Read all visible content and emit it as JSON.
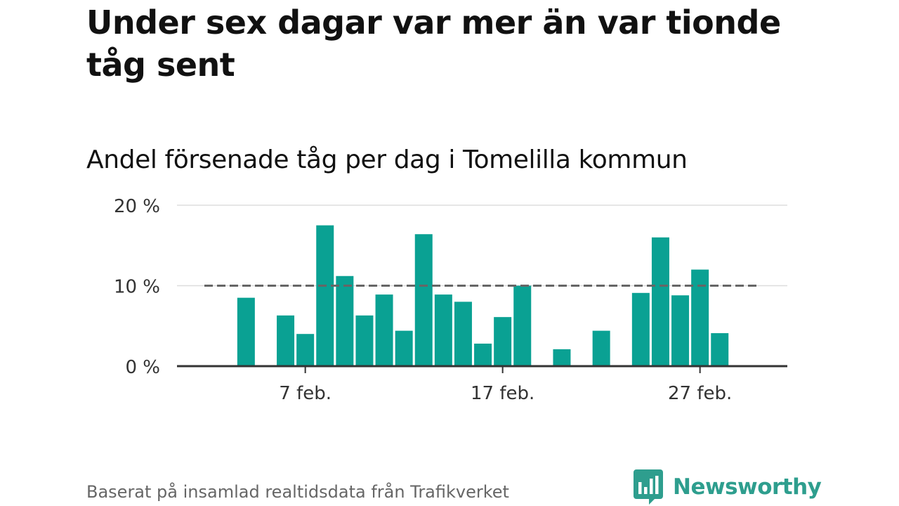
{
  "title": "Under sex dagar var mer än var tionde tåg sent",
  "subtitle": "Andel försenade tåg per dag i Tomelilla kommun",
  "source": "Baserat på insamlad realtidsdata från Trafikverket",
  "brand": {
    "name": "Newsworthy",
    "logo_icon": "newsworthy-logo-icon",
    "color": "#2e9e8e"
  },
  "colors": {
    "bar": "#0aa193",
    "reference_line": "#666666",
    "grid": "#dddddd",
    "axis": "#333333"
  },
  "chart_data": {
    "type": "bar",
    "title": "Andel försenade tåg per dag i Tomelilla kommun",
    "xlabel": "",
    "ylabel": "",
    "y_unit": "%",
    "ylim": [
      0,
      20
    ],
    "yticks": [
      0,
      10,
      20
    ],
    "ytick_labels": [
      "0 %",
      "10 %",
      "20 %"
    ],
    "grid": true,
    "xticks": [
      {
        "day": 7,
        "label": "7 feb."
      },
      {
        "day": 17,
        "label": "17 feb."
      },
      {
        "day": 27,
        "label": "27 feb."
      }
    ],
    "x": [
      1,
      2,
      3,
      4,
      5,
      6,
      7,
      8,
      9,
      10,
      11,
      12,
      13,
      14,
      15,
      16,
      17,
      18,
      19,
      20,
      21,
      22,
      23,
      24,
      25,
      26,
      27,
      28
    ],
    "values": [
      null,
      null,
      null,
      8.5,
      null,
      6.3,
      4.0,
      17.5,
      11.2,
      6.3,
      8.9,
      4.4,
      16.4,
      8.9,
      8.0,
      2.8,
      6.1,
      10.0,
      null,
      2.1,
      null,
      4.4,
      null,
      9.1,
      16.0,
      8.8,
      12.0,
      4.1
    ],
    "reference_line": {
      "value": 10,
      "style": "dashed"
    }
  }
}
